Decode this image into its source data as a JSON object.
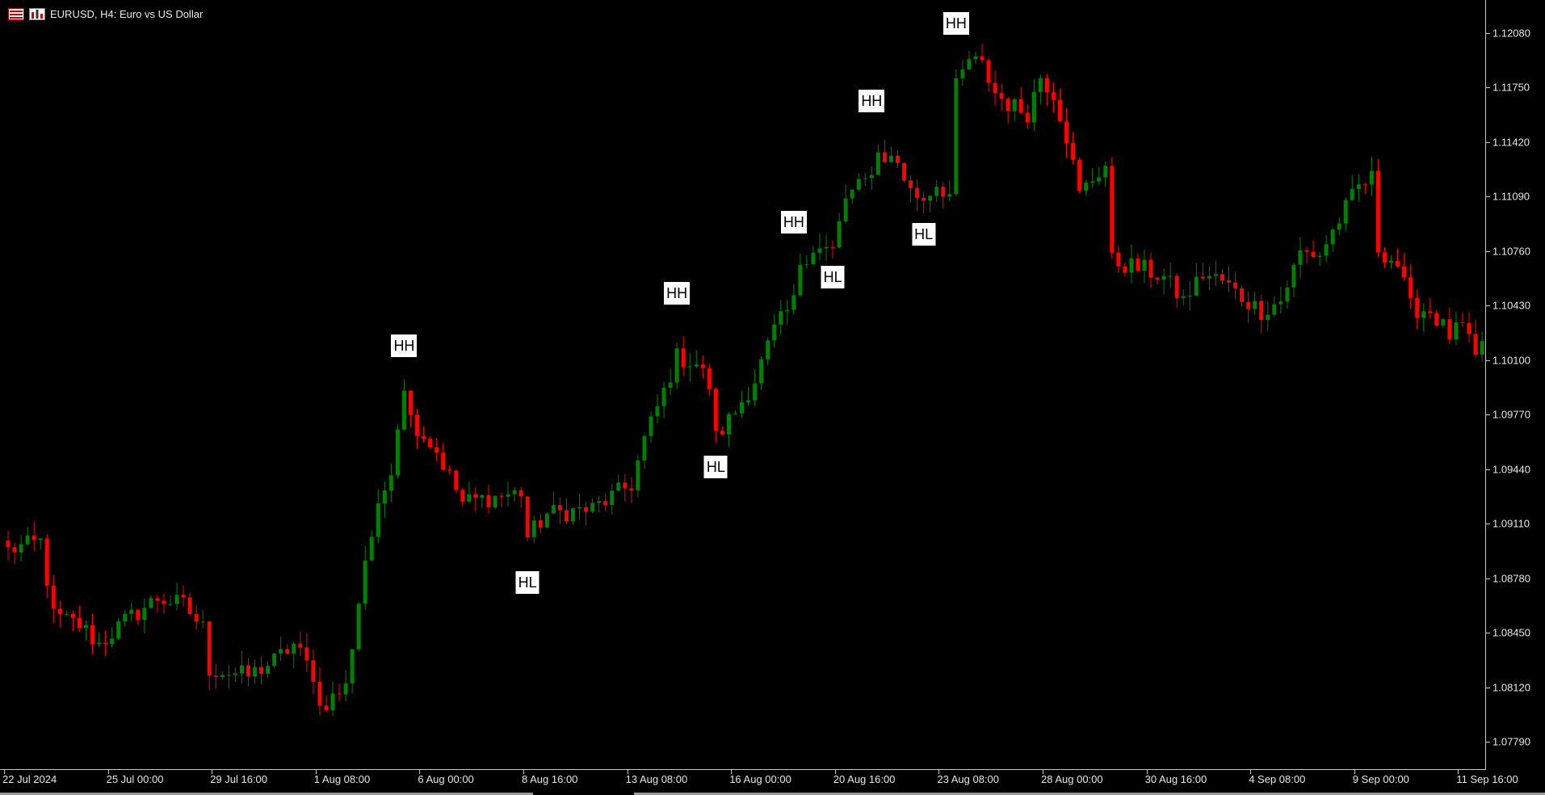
{
  "window": {
    "title": "EURUSD, H4:  Euro vs US Dollar",
    "icons": [
      "candles-menu-icon",
      "chart-bars-icon"
    ]
  },
  "colors": {
    "background": "#000000",
    "bull_candle": "#008000",
    "bear_candle": "#ff0000",
    "axis_text": "#e6e6e6",
    "marker_bg": "#ffffff",
    "marker_text": "#000000"
  },
  "price_axis": {
    "labels": [
      "1.12080",
      "1.11750",
      "1.11420",
      "1.11090",
      "1.10760",
      "1.10430",
      "1.10100",
      "1.09770",
      "1.09440",
      "1.09110",
      "1.08780",
      "1.08450",
      "1.08120",
      "1.07790"
    ]
  },
  "time_axis": {
    "labels": [
      "22 Jul 2024",
      "25 Jul 00:00",
      "29 Jul 16:00",
      "1 Aug 08:00",
      "6 Aug 00:00",
      "8 Aug 16:00",
      "13 Aug 08:00",
      "16 Aug 00:00",
      "20 Aug 16:00",
      "23 Aug 08:00",
      "28 Aug 00:00",
      "30 Aug 16:00",
      "4 Sep 08:00",
      "9 Sep 00:00",
      "11 Sep 16:00"
    ]
  },
  "chart_data": {
    "type": "candlestick",
    "symbol": "EURUSD",
    "timeframe": "H4",
    "ylim": [
      1.0762,
      1.1228
    ],
    "candle_count": 228,
    "swing_markers": [
      {
        "label": "HH",
        "candle_index": 61,
        "price": 1.1006,
        "position": "above"
      },
      {
        "label": "HL",
        "candle_index": 80,
        "price": 1.0888,
        "position": "below"
      },
      {
        "label": "HH",
        "candle_index": 103,
        "price": 1.1038,
        "position": "above"
      },
      {
        "label": "HL",
        "candle_index": 109,
        "price": 1.0958,
        "position": "below"
      },
      {
        "label": "HH",
        "candle_index": 121,
        "price": 1.1081,
        "position": "above"
      },
      {
        "label": "HL",
        "candle_index": 127,
        "price": 1.1073,
        "position": "below"
      },
      {
        "label": "HH",
        "candle_index": 133,
        "price": 1.1154,
        "position": "above"
      },
      {
        "label": "HL",
        "candle_index": 141,
        "price": 1.1099,
        "position": "below"
      },
      {
        "label": "HH",
        "candle_index": 146,
        "price": 1.1201,
        "position": "above"
      }
    ],
    "close_path": [
      [
        0,
        1.0895
      ],
      [
        5,
        1.09
      ],
      [
        7,
        1.0855
      ],
      [
        11,
        1.085
      ],
      [
        14,
        1.0838
      ],
      [
        18,
        1.0852
      ],
      [
        23,
        1.0866
      ],
      [
        27,
        1.0862
      ],
      [
        30,
        1.0848
      ],
      [
        31,
        1.0823
      ],
      [
        37,
        1.0819
      ],
      [
        41,
        1.0828
      ],
      [
        44,
        1.0838
      ],
      [
        47,
        1.082
      ],
      [
        48,
        1.08
      ],
      [
        52,
        1.0812
      ],
      [
        55,
        1.089
      ],
      [
        57,
        1.0918
      ],
      [
        59,
        1.0946
      ],
      [
        61,
        1.0996
      ],
      [
        62,
        1.0975
      ],
      [
        66,
        1.0955
      ],
      [
        70,
        1.0924
      ],
      [
        76,
        1.0928
      ],
      [
        79,
        1.093
      ],
      [
        80,
        1.0903
      ],
      [
        83,
        1.0917
      ],
      [
        90,
        1.092
      ],
      [
        96,
        1.0935
      ],
      [
        98,
        1.0962
      ],
      [
        101,
        1.0991
      ],
      [
        103,
        1.1012
      ],
      [
        106,
        1.1008
      ],
      [
        108,
        1.0995
      ],
      [
        109,
        1.0963
      ],
      [
        112,
        1.0979
      ],
      [
        115,
        1.0998
      ],
      [
        118,
        1.1028
      ],
      [
        121,
        1.1045
      ],
      [
        122,
        1.107
      ],
      [
        124,
        1.1078
      ],
      [
        127,
        1.1076
      ],
      [
        129,
        1.1108
      ],
      [
        132,
        1.1118
      ],
      [
        134,
        1.1135
      ],
      [
        137,
        1.113
      ],
      [
        139,
        1.1112
      ],
      [
        141,
        1.1108
      ],
      [
        143,
        1.1117
      ],
      [
        145,
        1.111
      ],
      [
        146,
        1.1175
      ],
      [
        148,
        1.1192
      ],
      [
        150,
        1.1188
      ],
      [
        152,
        1.1172
      ],
      [
        154,
        1.1165
      ],
      [
        157,
        1.116
      ],
      [
        159,
        1.1182
      ],
      [
        161,
        1.1172
      ],
      [
        163,
        1.1146
      ],
      [
        165,
        1.111
      ],
      [
        167,
        1.112
      ],
      [
        169,
        1.1128
      ],
      [
        170,
        1.107
      ],
      [
        172,
        1.1068
      ],
      [
        175,
        1.1065
      ],
      [
        178,
        1.106
      ],
      [
        181,
        1.1046
      ],
      [
        184,
        1.1062
      ],
      [
        187,
        1.1058
      ],
      [
        190,
        1.1048
      ],
      [
        193,
        1.104
      ],
      [
        196,
        1.1046
      ],
      [
        199,
        1.1075
      ],
      [
        202,
        1.1074
      ],
      [
        205,
        1.1095
      ],
      [
        208,
        1.1115
      ],
      [
        210,
        1.112
      ],
      [
        211,
        1.1078
      ],
      [
        214,
        1.1068
      ],
      [
        216,
        1.1042
      ],
      [
        219,
        1.104
      ],
      [
        222,
        1.1025
      ],
      [
        224,
        1.103
      ],
      [
        226,
        1.101
      ],
      [
        227,
        1.1022
      ]
    ]
  }
}
